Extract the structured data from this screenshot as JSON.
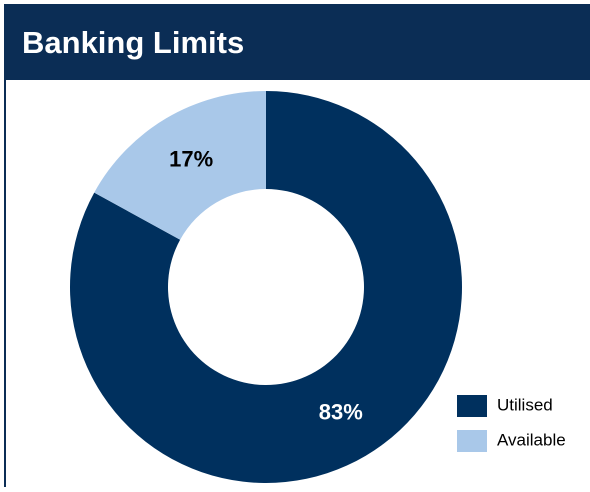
{
  "chart_data": {
    "type": "donut",
    "title": "Banking Limits",
    "categories": [
      "Utilised",
      "Available"
    ],
    "values": [
      83,
      17
    ],
    "value_labels": [
      "83%",
      "17%"
    ],
    "colors": [
      "#00305e",
      "#a9c8e9"
    ],
    "label_colors": [
      "#ffffff",
      "#000000"
    ],
    "legend": "bottom-right"
  }
}
